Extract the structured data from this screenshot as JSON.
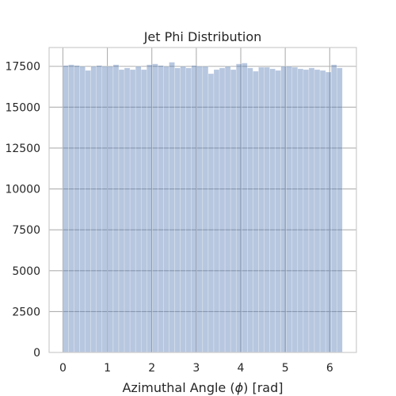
{
  "chart_data": {
    "type": "bar",
    "title": "Jet Phi Distribution",
    "xlabel": "Azimuthal Angle ($\\phi$) [rad]",
    "ylabel": "",
    "bin_start": 0,
    "bin_width": 0.1257,
    "counts": [
      17550,
      17600,
      17550,
      17500,
      17250,
      17500,
      17550,
      17500,
      17500,
      17600,
      17300,
      17400,
      17300,
      17500,
      17300,
      17600,
      17650,
      17550,
      17500,
      17750,
      17400,
      17500,
      17400,
      17550,
      17500,
      17500,
      17050,
      17300,
      17400,
      17500,
      17300,
      17650,
      17700,
      17400,
      17200,
      17450,
      17450,
      17350,
      17250,
      17500,
      17500,
      17450,
      17350,
      17300,
      17400,
      17300,
      17250,
      17150,
      17600,
      17400
    ],
    "xlim": [
      -0.31,
      6.6
    ],
    "ylim": [
      0,
      18650
    ],
    "xticks": [
      0,
      1,
      2,
      3,
      4,
      5,
      6
    ],
    "xtick_labels": [
      "0",
      "1",
      "2",
      "3",
      "4",
      "5",
      "6"
    ],
    "yticks": [
      0,
      2500,
      5000,
      7500,
      10000,
      12500,
      15000,
      17500
    ],
    "ytick_labels": [
      "0",
      "2500",
      "5000",
      "7500",
      "10000",
      "12500",
      "15000",
      "17500"
    ],
    "bar_color": "#4c72b0",
    "bar_opacity": 0.4,
    "grid": true,
    "grid_color": "#b0b0b0"
  }
}
